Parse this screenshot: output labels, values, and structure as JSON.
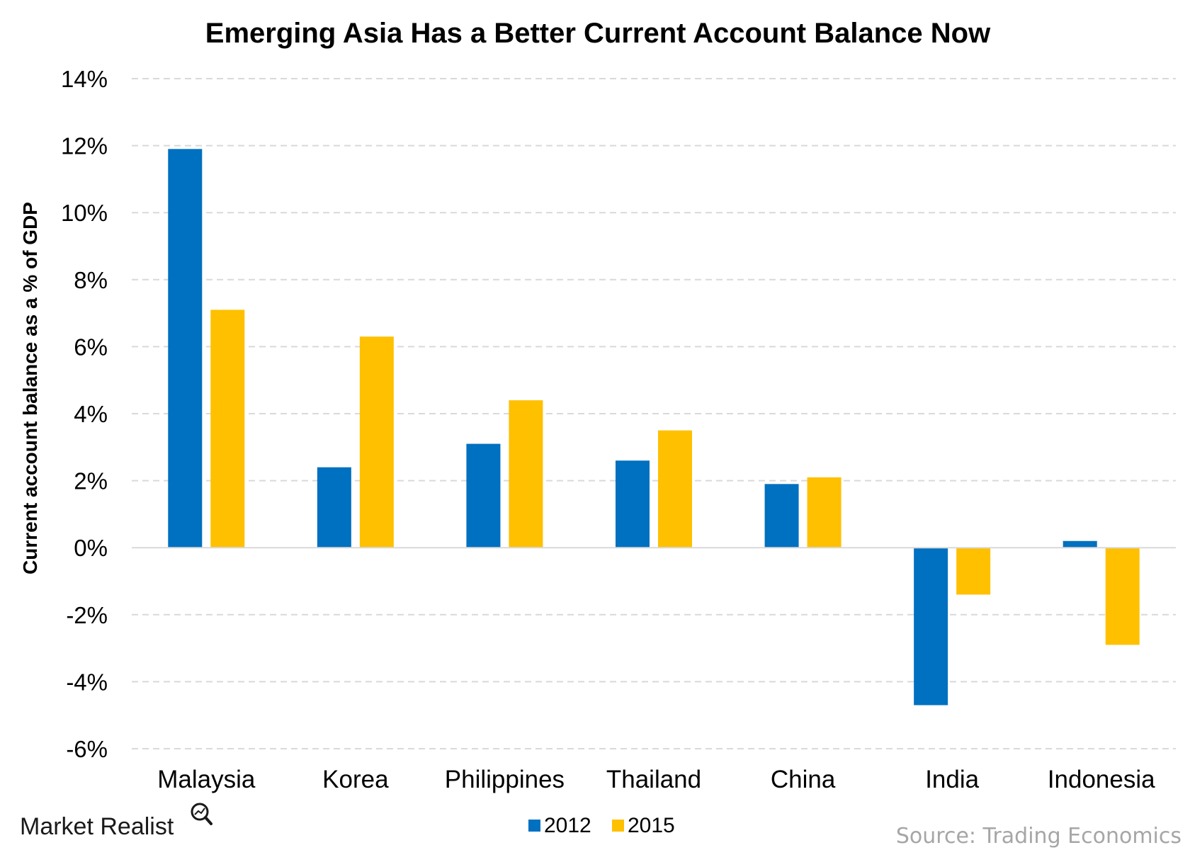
{
  "chart_data": {
    "type": "bar",
    "title": "Emerging Asia Has a Better Current Account Balance Now",
    "ylabel": "Current account balance as a % of GDP",
    "xlabel": "",
    "categories": [
      "Malaysia",
      "Korea",
      "Philippines",
      "Thailand",
      "China",
      "India",
      "Indonesia"
    ],
    "series": [
      {
        "name": "2012",
        "color": "#0070c0",
        "values": [
          11.9,
          2.4,
          3.1,
          2.6,
          1.9,
          -4.7,
          0.2
        ]
      },
      {
        "name": "2015",
        "color": "#ffc000",
        "values": [
          7.1,
          6.3,
          4.4,
          3.5,
          2.1,
          -1.4,
          -2.9
        ]
      }
    ],
    "ylim": [
      -6,
      14
    ],
    "yticks": [
      14,
      12,
      10,
      8,
      6,
      4,
      2,
      0,
      -2,
      -4,
      -6
    ],
    "ytick_labels": [
      "14%",
      "12%",
      "10%",
      "8%",
      "6%",
      "4%",
      "2%",
      "0%",
      "-2%",
      "-4%",
      "-6%"
    ],
    "grid": true,
    "legend_position": "bottom"
  },
  "branding": {
    "logo_text": "Market Realist",
    "source": "Source: Trading Economics"
  }
}
